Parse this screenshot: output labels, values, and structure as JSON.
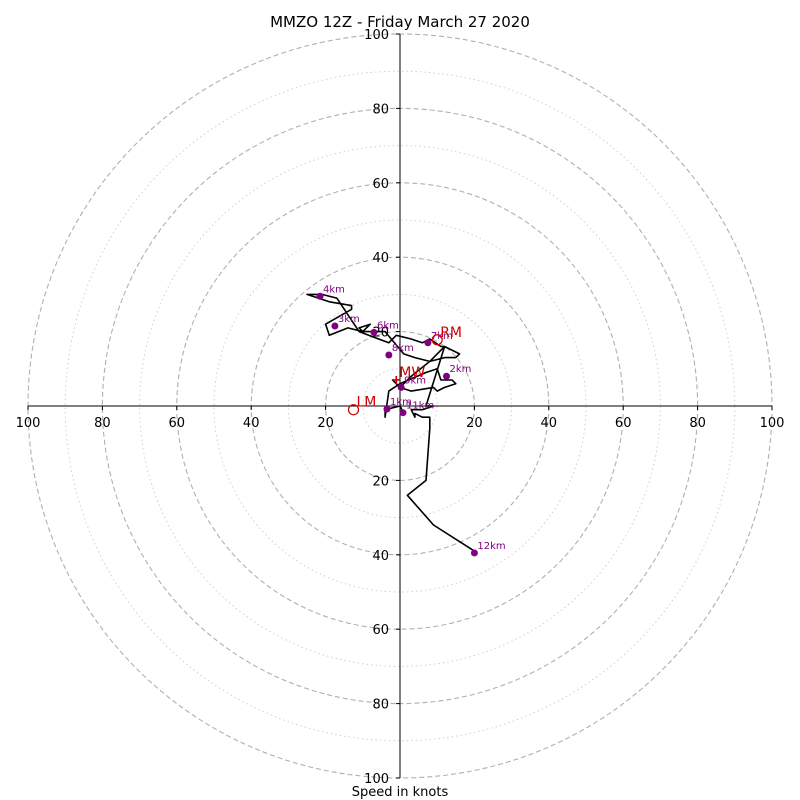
{
  "title": "MMZO 12Z - Friday March 27 2020",
  "colors": {
    "trace": "#000000",
    "markers": "#800080",
    "motion": "#cc0000",
    "grid": "#b0b0b0",
    "axes": "#000000"
  },
  "chart_data": {
    "type": "hodograph",
    "title": "MMZO 12Z - Friday March 27 2020",
    "xlabel": "Speed in knots",
    "ylabel": "",
    "range_knots": [
      -100,
      100
    ],
    "ring_major_knots": [
      20,
      40,
      60,
      80,
      100
    ],
    "ring_minor_knots": [
      10,
      30,
      50,
      70,
      90
    ],
    "grid": true,
    "x_ticks": [
      {
        "value": -100,
        "label": "100"
      },
      {
        "value": -80,
        "label": "80"
      },
      {
        "value": -60,
        "label": "60"
      },
      {
        "value": -40,
        "label": "40"
      },
      {
        "value": -20,
        "label": "20"
      },
      {
        "value": 20,
        "label": "20"
      },
      {
        "value": 40,
        "label": "40"
      },
      {
        "value": 60,
        "label": "60"
      },
      {
        "value": 80,
        "label": "80"
      },
      {
        "value": 100,
        "label": "100"
      }
    ],
    "y_ticks": [
      {
        "value": 100,
        "label": "100"
      },
      {
        "value": 80,
        "label": "80"
      },
      {
        "value": 60,
        "label": "60"
      },
      {
        "value": 40,
        "label": "40"
      },
      {
        "value": 20,
        "label": "20"
      },
      {
        "value": -20,
        "label": "20"
      },
      {
        "value": -40,
        "label": "40"
      },
      {
        "value": -60,
        "label": "60"
      },
      {
        "value": -80,
        "label": "80"
      },
      {
        "value": -100,
        "label": "100"
      }
    ],
    "trace": {
      "u": [
        1,
        0,
        -4,
        -4,
        -3,
        0,
        7,
        10,
        11,
        14,
        15,
        12,
        10,
        9,
        3,
        0,
        -1,
        -2,
        0,
        3,
        8,
        10,
        12,
        16,
        15,
        12,
        8,
        4,
        1,
        -4,
        -5,
        -10,
        -11,
        -8,
        -10,
        -14,
        -19,
        -20,
        -13,
        -13,
        -19,
        -25,
        -21,
        -17,
        -11,
        -3,
        -1,
        3,
        6,
        8,
        11,
        12,
        7,
        9,
        6,
        3,
        4,
        4,
        6,
        8,
        8,
        7,
        2,
        9,
        20
      ],
      "v": [
        -2,
        0,
        -1,
        -3,
        4,
        6,
        9,
        10,
        7,
        7,
        6,
        5,
        4,
        5,
        4,
        5,
        6,
        7,
        5,
        8,
        12,
        14,
        16,
        14,
        13,
        13,
        12,
        13,
        14,
        20,
        20,
        20,
        21,
        22,
        20,
        21,
        19,
        22,
        26,
        27,
        28,
        30,
        30,
        29,
        20,
        17,
        19,
        18,
        17,
        18,
        16,
        16,
        0,
        0,
        -1,
        -1,
        -3,
        -2,
        -3,
        -3,
        -6,
        -20,
        -24,
        -32,
        -39
      ]
    },
    "height_markers": [
      {
        "label": "1km",
        "u": -3.5,
        "v": -0.8
      },
      {
        "label": "2km",
        "u": 12.5,
        "v": 8.0
      },
      {
        "label": "3km",
        "u": -17.5,
        "v": 21.5
      },
      {
        "label": "4km",
        "u": -21.5,
        "v": 29.5
      },
      {
        "label": "6km",
        "u": -7.0,
        "v": 19.8
      },
      {
        "label": "7km",
        "u": 7.5,
        "v": 17.0
      },
      {
        "label": "8km",
        "u": -3.0,
        "v": 13.7
      },
      {
        "label": "9km",
        "u": 0.3,
        "v": 5.0
      },
      {
        "label": "11km",
        "u": 0.8,
        "v": -1.8
      },
      {
        "label": "12km",
        "u": 20.0,
        "v": -39.5
      }
    ],
    "storm_motion": [
      {
        "label": "RM",
        "u": 10.0,
        "v": 17.8,
        "marker": "ring"
      },
      {
        "label": "MW",
        "u": -1.0,
        "v": 7.0,
        "marker": "cross"
      },
      {
        "label": "LM",
        "u": -12.5,
        "v": -1.0,
        "marker": "ring"
      }
    ]
  }
}
